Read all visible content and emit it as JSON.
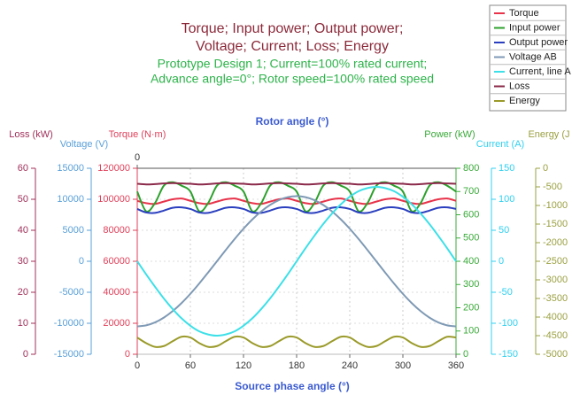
{
  "chart_data": {
    "type": "line",
    "title": [
      "Torque; Input power; Output power;",
      "Voltage; Current; Loss; Energy"
    ],
    "subtitle": [
      "Prototype Design 1; Current=100% rated current;",
      "Advance angle=0°; Rotor speed=100% rated speed"
    ],
    "xlabel": "Source phase angle (°)",
    "x2label": "Rotor angle (°)",
    "xlim": [
      0,
      360
    ],
    "xticks": [
      0,
      60,
      120,
      180,
      240,
      300,
      360
    ],
    "x2ticks": [
      0
    ],
    "grid": true,
    "x": [
      0,
      10,
      20,
      30,
      40,
      50,
      60,
      70,
      80,
      90,
      100,
      110,
      120,
      130,
      140,
      150,
      160,
      170,
      180,
      190,
      200,
      210,
      220,
      230,
      240,
      250,
      260,
      270,
      280,
      290,
      300,
      310,
      320,
      330,
      340,
      350,
      360
    ],
    "y_axes": [
      {
        "label": "Loss (kW)",
        "lim": [
          0,
          60
        ],
        "ticks": [
          0,
          10,
          20,
          30,
          40,
          50,
          60
        ],
        "color": "#a0305a"
      },
      {
        "label": "Voltage (V)",
        "lim": [
          -15000,
          15000
        ],
        "ticks": [
          -15000,
          -10000,
          -5000,
          0,
          5000,
          10000,
          15000
        ],
        "color": "#5aa0d8"
      },
      {
        "label": "Torque (N·m)",
        "lim": [
          0,
          120000
        ],
        "ticks": [
          0,
          20000,
          40000,
          60000,
          80000,
          100000,
          120000
        ],
        "color": "#e0405a"
      },
      {
        "label": "Power (kW)",
        "lim": [
          0,
          800
        ],
        "ticks": [
          0,
          100,
          200,
          300,
          400,
          500,
          600,
          700,
          800
        ],
        "color": "#3aaa3a"
      },
      {
        "label": "Current (A)",
        "lim": [
          -150,
          150
        ],
        "ticks": [
          -150,
          -100,
          -50,
          0,
          50,
          100,
          150
        ],
        "color": "#30d0f0"
      },
      {
        "label": "Energy (J",
        "lim": [
          -5000,
          0
        ],
        "ticks": [
          -5000,
          -4500,
          -4000,
          -3500,
          -3000,
          -2500,
          -2000,
          -1500,
          -1000,
          -500,
          0
        ],
        "color": "#9aa040"
      }
    ],
    "series": [
      {
        "name": "Torque",
        "color": "#e8334a",
        "axis": 2,
        "values": [
          99000,
          97500,
          97000,
          98500,
          100000,
          100500,
          99000,
          97500,
          97000,
          98500,
          100000,
          100500,
          99000,
          97500,
          97000,
          98500,
          100000,
          100500,
          99000,
          97500,
          97000,
          98500,
          100000,
          100500,
          99000,
          97500,
          97000,
          98500,
          100000,
          100500,
          99000,
          97500,
          97000,
          98500,
          100000,
          100500,
          99000
        ]
      },
      {
        "name": "Input power",
        "color": "#2ca02c",
        "axis": 3,
        "values": [
          700,
          615,
          650,
          725,
          740,
          725,
          700,
          615,
          650,
          725,
          740,
          725,
          700,
          615,
          650,
          725,
          740,
          725,
          700,
          615,
          650,
          725,
          740,
          725,
          700,
          615,
          650,
          725,
          740,
          725,
          700,
          615,
          650,
          725,
          740,
          725,
          700
        ]
      },
      {
        "name": "Output power",
        "color": "#2a3fbf",
        "axis": 3,
        "values": [
          625,
          610,
          608,
          618,
          630,
          632,
          625,
          610,
          608,
          618,
          630,
          632,
          625,
          610,
          608,
          618,
          630,
          632,
          625,
          610,
          608,
          618,
          630,
          632,
          625,
          610,
          608,
          618,
          630,
          632,
          625,
          610,
          608,
          618,
          630,
          632,
          625
        ]
      },
      {
        "name": "Voltage AB",
        "color": "#7f9ab5",
        "axis": 1,
        "values": [
          -10500,
          -10340,
          -9870,
          -9090,
          -8040,
          -6750,
          -5250,
          -3590,
          -1820,
          0,
          1820,
          3590,
          5250,
          6750,
          8040,
          9090,
          9870,
          10340,
          10500,
          10340,
          9870,
          9090,
          8040,
          6750,
          5250,
          3590,
          1820,
          0,
          -1820,
          -3590,
          -5250,
          -6750,
          -8040,
          -9090,
          -9870,
          -10340,
          -10500
        ]
      },
      {
        "name": "Current, line A",
        "color": "#3de0e8",
        "axis": 4,
        "values": [
          0,
          -21,
          -41,
          -60,
          -77,
          -92,
          -104,
          -113,
          -118,
          -120,
          -118,
          -113,
          -104,
          -92,
          -77,
          -60,
          -41,
          -21,
          0,
          21,
          41,
          60,
          77,
          92,
          104,
          113,
          118,
          120,
          118,
          113,
          104,
          92,
          77,
          60,
          41,
          21,
          0
        ]
      },
      {
        "name": "Loss",
        "color": "#8b2a4a",
        "axis": 0,
        "values": [
          55,
          54.8,
          54.9,
          55.1,
          55.2,
          55.1,
          55,
          54.8,
          54.9,
          55.1,
          55.2,
          55.1,
          55,
          54.8,
          54.9,
          55.1,
          55.2,
          55.1,
          55,
          54.8,
          54.9,
          55.1,
          55.2,
          55.1,
          55,
          54.8,
          54.9,
          55.1,
          55.2,
          55.1,
          55,
          54.8,
          54.9,
          55.1,
          55.2,
          55.1,
          55
        ]
      },
      {
        "name": "Energy",
        "color": "#9a9a2a",
        "axis": 5,
        "values": [
          -4550,
          -4700,
          -4800,
          -4780,
          -4650,
          -4530,
          -4550,
          -4700,
          -4800,
          -4780,
          -4650,
          -4530,
          -4550,
          -4700,
          -4800,
          -4780,
          -4650,
          -4530,
          -4550,
          -4700,
          -4800,
          -4780,
          -4650,
          -4530,
          -4550,
          -4700,
          -4800,
          -4780,
          -4650,
          -4530,
          -4550,
          -4700,
          -4800,
          -4780,
          -4650,
          -4530,
          -4550
        ]
      }
    ]
  }
}
